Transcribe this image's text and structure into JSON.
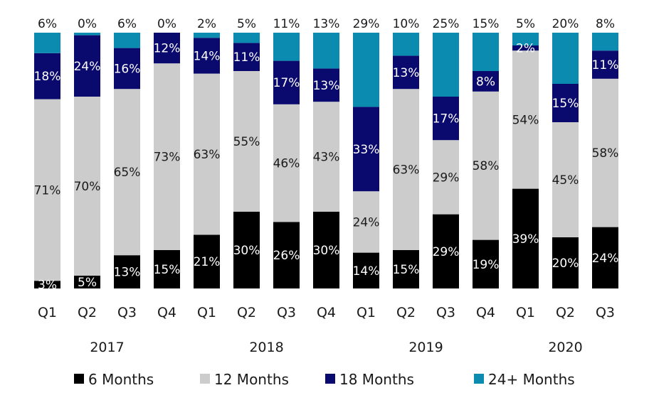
{
  "chart_data": {
    "type": "bar",
    "stacked": true,
    "categories": [
      "Q1",
      "Q2",
      "Q3",
      "Q4",
      "Q1",
      "Q2",
      "Q3",
      "Q4",
      "Q1",
      "Q2",
      "Q3",
      "Q4",
      "Q1",
      "Q2",
      "Q3"
    ],
    "groups": [
      {
        "label": "2017",
        "count": 4
      },
      {
        "label": "2018",
        "count": 4
      },
      {
        "label": "2019",
        "count": 4
      },
      {
        "label": "2020",
        "count": 3
      }
    ],
    "series": [
      {
        "name": "6 Months",
        "color": "#000000",
        "label_color": "#ffffff",
        "values": [
          3,
          5,
          13,
          15,
          21,
          30,
          26,
          30,
          14,
          15,
          29,
          19,
          39,
          20,
          24
        ]
      },
      {
        "name": "12 Months",
        "color": "#cccccc",
        "label_color": "#1a1a1a",
        "values": [
          71,
          70,
          65,
          73,
          63,
          55,
          46,
          43,
          24,
          63,
          29,
          58,
          54,
          45,
          58
        ]
      },
      {
        "name": "18 Months",
        "color": "#0a0a6e",
        "label_color": "#ffffff",
        "values": [
          18,
          24,
          16,
          12,
          14,
          11,
          17,
          13,
          33,
          13,
          17,
          8,
          2,
          15,
          11
        ]
      },
      {
        "name": "24+ Months",
        "color": "#0b8bb0",
        "label_color": "#1a1a1a",
        "values": [
          6,
          0,
          6,
          0,
          2,
          5,
          11,
          13,
          29,
          10,
          25,
          15,
          5,
          20,
          8
        ]
      }
    ],
    "value_suffix": "%",
    "ylim": [
      0,
      100
    ],
    "grid": false,
    "legend_position": "bottom",
    "title": "",
    "xlabel": "",
    "ylabel": ""
  }
}
